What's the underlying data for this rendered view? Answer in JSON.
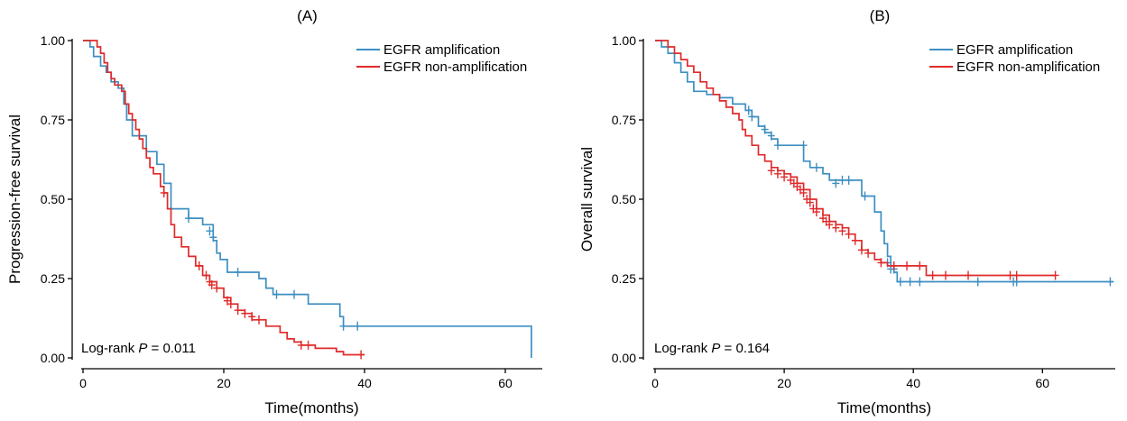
{
  "colors": {
    "amplification": "#3d8fc2",
    "non_amplification": "#e02a2a"
  },
  "chart_data": [
    {
      "type": "line",
      "subtype": "kaplan-meier",
      "panel_label": "(A)",
      "xlabel": "Time(months)",
      "ylabel": "Progression-free survival",
      "xlim": [
        0,
        65
      ],
      "ylim": [
        0,
        1
      ],
      "xticks": [
        "0",
        "20",
        "40",
        "60"
      ],
      "yticks": [
        "0.00",
        "0.25",
        "0.50",
        "0.75",
        "1.00"
      ],
      "legend_position": "top-right",
      "annotation": {
        "prefix": "Log-rank ",
        "italic": "P",
        "suffix": " = 0.011"
      },
      "series": [
        {
          "name": "EGFR amplification",
          "color": "#3d8fc2",
          "steps": [
            [
              0,
              1.0
            ],
            [
              1,
              0.98
            ],
            [
              1.5,
              0.95
            ],
            [
              2.5,
              0.92
            ],
            [
              3.3,
              0.9
            ],
            [
              4,
              0.87
            ],
            [
              5,
              0.85
            ],
            [
              5.8,
              0.8
            ],
            [
              6.2,
              0.75
            ],
            [
              7,
              0.7
            ],
            [
              9,
              0.65
            ],
            [
              10.5,
              0.61
            ],
            [
              11.5,
              0.55
            ],
            [
              12.5,
              0.47
            ],
            [
              15,
              0.44
            ],
            [
              17,
              0.42
            ],
            [
              18.5,
              0.37
            ],
            [
              19,
              0.33
            ],
            [
              19.5,
              0.31
            ],
            [
              20.5,
              0.27
            ],
            [
              25,
              0.25
            ],
            [
              26,
              0.22
            ],
            [
              27,
              0.2
            ],
            [
              32,
              0.17
            ],
            [
              36.5,
              0.13
            ],
            [
              37,
              0.1
            ],
            [
              63.5,
              0.1
            ],
            [
              63.7,
              0.0
            ]
          ],
          "censored": [
            [
              15,
              0.44
            ],
            [
              18,
              0.4
            ],
            [
              18.5,
              0.38
            ],
            [
              22,
              0.27
            ],
            [
              27.5,
              0.2
            ],
            [
              30,
              0.2
            ],
            [
              37,
              0.1
            ],
            [
              39,
              0.1
            ]
          ]
        },
        {
          "name": "EGFR non-amplification",
          "color": "#e02a2a",
          "steps": [
            [
              0,
              1.0
            ],
            [
              2,
              0.98
            ],
            [
              2.5,
              0.96
            ],
            [
              3,
              0.93
            ],
            [
              3.5,
              0.9
            ],
            [
              4,
              0.88
            ],
            [
              4.5,
              0.86
            ],
            [
              5.5,
              0.84
            ],
            [
              6,
              0.8
            ],
            [
              6.5,
              0.77
            ],
            [
              7,
              0.75
            ],
            [
              7.5,
              0.72
            ],
            [
              8,
              0.69
            ],
            [
              8.5,
              0.66
            ],
            [
              9,
              0.63
            ],
            [
              9.5,
              0.6
            ],
            [
              10,
              0.58
            ],
            [
              11,
              0.54
            ],
            [
              11.5,
              0.52
            ],
            [
              12,
              0.47
            ],
            [
              12.5,
              0.42
            ],
            [
              13,
              0.38
            ],
            [
              14,
              0.35
            ],
            [
              15,
              0.32
            ],
            [
              16,
              0.29
            ],
            [
              17,
              0.26
            ],
            [
              18,
              0.24
            ],
            [
              19,
              0.22
            ],
            [
              20,
              0.19
            ],
            [
              21,
              0.17
            ],
            [
              22,
              0.15
            ],
            [
              23,
              0.14
            ],
            [
              24,
              0.12
            ],
            [
              26,
              0.1
            ],
            [
              28,
              0.08
            ],
            [
              29,
              0.06
            ],
            [
              30,
              0.05
            ],
            [
              31,
              0.04
            ],
            [
              33,
              0.03
            ],
            [
              36,
              0.02
            ],
            [
              37,
              0.01
            ],
            [
              40,
              0.01
            ]
          ],
          "censored": [
            [
              11.5,
              0.52
            ],
            [
              16.5,
              0.29
            ],
            [
              17.5,
              0.26
            ],
            [
              18,
              0.24
            ],
            [
              18.3,
              0.23
            ],
            [
              19,
              0.22
            ],
            [
              20.5,
              0.18
            ],
            [
              21,
              0.17
            ],
            [
              22,
              0.15
            ],
            [
              23,
              0.14
            ],
            [
              24,
              0.13
            ],
            [
              25,
              0.12
            ],
            [
              31,
              0.04
            ],
            [
              32,
              0.04
            ],
            [
              39.5,
              0.01
            ]
          ]
        }
      ]
    },
    {
      "type": "line",
      "subtype": "kaplan-meier",
      "panel_label": "(B)",
      "xlabel": "Time(months)",
      "ylabel": "Overall survival",
      "xlim": [
        0,
        71
      ],
      "ylim": [
        0,
        1
      ],
      "xticks": [
        "0",
        "20",
        "40",
        "60"
      ],
      "yticks": [
        "0.00",
        "0.25",
        "0.50",
        "0.75",
        "1.00"
      ],
      "legend_position": "top-right",
      "annotation": {
        "prefix": "Log-rank ",
        "italic": "P",
        "suffix": " = 0.164"
      },
      "series": [
        {
          "name": "EGFR amplification",
          "color": "#3d8fc2",
          "steps": [
            [
              0,
              1.0
            ],
            [
              1,
              0.98
            ],
            [
              2,
              0.96
            ],
            [
              3,
              0.93
            ],
            [
              4,
              0.9
            ],
            [
              5,
              0.87
            ],
            [
              6,
              0.84
            ],
            [
              8,
              0.83
            ],
            [
              10,
              0.82
            ],
            [
              12,
              0.8
            ],
            [
              14,
              0.78
            ],
            [
              15,
              0.76
            ],
            [
              16,
              0.73
            ],
            [
              17,
              0.71
            ],
            [
              18,
              0.69
            ],
            [
              19,
              0.67
            ],
            [
              23,
              0.62
            ],
            [
              24,
              0.6
            ],
            [
              26,
              0.58
            ],
            [
              27,
              0.56
            ],
            [
              32,
              0.51
            ],
            [
              34,
              0.46
            ],
            [
              35,
              0.4
            ],
            [
              35.5,
              0.36
            ],
            [
              36,
              0.32
            ],
            [
              36.5,
              0.29
            ],
            [
              37,
              0.27
            ],
            [
              37.5,
              0.24
            ],
            [
              71,
              0.24
            ]
          ],
          "censored": [
            [
              14.5,
              0.78
            ],
            [
              15,
              0.76
            ],
            [
              17,
              0.72
            ],
            [
              18,
              0.7
            ],
            [
              19,
              0.67
            ],
            [
              23,
              0.67
            ],
            [
              25,
              0.6
            ],
            [
              28,
              0.55
            ],
            [
              29,
              0.56
            ],
            [
              30,
              0.56
            ],
            [
              32.5,
              0.51
            ],
            [
              36,
              0.3
            ],
            [
              36.5,
              0.28
            ],
            [
              37,
              0.28
            ],
            [
              38,
              0.24
            ],
            [
              39.5,
              0.24
            ],
            [
              41,
              0.24
            ],
            [
              50,
              0.24
            ],
            [
              55.5,
              0.24
            ],
            [
              56,
              0.24
            ],
            [
              70.5,
              0.24
            ]
          ]
        },
        {
          "name": "EGFR non-amplification",
          "color": "#e02a2a",
          "steps": [
            [
              0,
              1.0
            ],
            [
              2,
              0.98
            ],
            [
              3,
              0.96
            ],
            [
              4,
              0.94
            ],
            [
              5,
              0.92
            ],
            [
              6,
              0.9
            ],
            [
              7,
              0.87
            ],
            [
              8,
              0.85
            ],
            [
              9,
              0.83
            ],
            [
              10,
              0.81
            ],
            [
              11,
              0.79
            ],
            [
              12,
              0.77
            ],
            [
              13,
              0.75
            ],
            [
              13.5,
              0.72
            ],
            [
              14,
              0.7
            ],
            [
              15,
              0.67
            ],
            [
              16,
              0.64
            ],
            [
              17,
              0.62
            ],
            [
              18,
              0.6
            ],
            [
              19,
              0.59
            ],
            [
              20,
              0.58
            ],
            [
              21,
              0.57
            ],
            [
              22,
              0.55
            ],
            [
              23,
              0.53
            ],
            [
              24,
              0.5
            ],
            [
              25,
              0.47
            ],
            [
              26,
              0.45
            ],
            [
              27,
              0.43
            ],
            [
              28,
              0.42
            ],
            [
              29,
              0.41
            ],
            [
              30,
              0.39
            ],
            [
              31,
              0.37
            ],
            [
              32,
              0.34
            ],
            [
              33,
              0.33
            ],
            [
              34,
              0.31
            ],
            [
              35,
              0.3
            ],
            [
              36,
              0.29
            ],
            [
              42,
              0.26
            ],
            [
              62,
              0.26
            ]
          ],
          "censored": [
            [
              18,
              0.59
            ],
            [
              19,
              0.58
            ],
            [
              20,
              0.57
            ],
            [
              21,
              0.56
            ],
            [
              21.5,
              0.55
            ],
            [
              22,
              0.54
            ],
            [
              22.5,
              0.53
            ],
            [
              23,
              0.52
            ],
            [
              23.5,
              0.5
            ],
            [
              24,
              0.49
            ],
            [
              24.5,
              0.47
            ],
            [
              25,
              0.46
            ],
            [
              26,
              0.44
            ],
            [
              26.5,
              0.43
            ],
            [
              27,
              0.42
            ],
            [
              28,
              0.41
            ],
            [
              29,
              0.4
            ],
            [
              30,
              0.39
            ],
            [
              31,
              0.37
            ],
            [
              32,
              0.34
            ],
            [
              33,
              0.33
            ],
            [
              35,
              0.3
            ],
            [
              37,
              0.29
            ],
            [
              39,
              0.29
            ],
            [
              41,
              0.29
            ],
            [
              43,
              0.26
            ],
            [
              45,
              0.26
            ],
            [
              48.5,
              0.26
            ],
            [
              55,
              0.26
            ],
            [
              56,
              0.26
            ],
            [
              62,
              0.26
            ]
          ]
        }
      ]
    }
  ]
}
